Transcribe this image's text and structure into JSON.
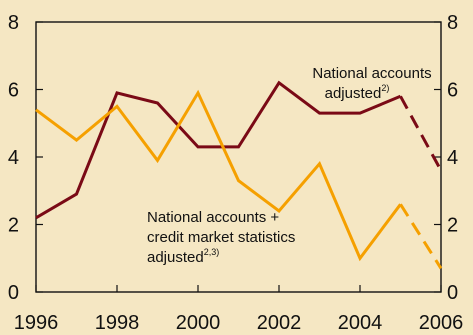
{
  "chart_data": {
    "type": "line",
    "title": "",
    "xlabel": "",
    "ylabel": "",
    "xlim": [
      1996,
      2006
    ],
    "ylim": [
      0,
      8
    ],
    "grid": false,
    "x_ticks": [
      "1996",
      "1998",
      "2000",
      "2002",
      "2004",
      "2006"
    ],
    "y_ticks_left": [
      "0",
      "2",
      "4",
      "6",
      "8"
    ],
    "y_ticks_right": [
      "0",
      "2",
      "4",
      "6",
      "8"
    ],
    "series": [
      {
        "label_main": "National accounts",
        "label_line2": "adjusted",
        "label_sup": "2)",
        "color": "#7a0a16",
        "points": [
          {
            "x": 1996,
            "y": 2.2
          },
          {
            "x": 1997,
            "y": 2.9
          },
          {
            "x": 1998,
            "y": 5.9
          },
          {
            "x": 1999,
            "y": 5.6
          },
          {
            "x": 2000,
            "y": 4.3
          },
          {
            "x": 2001,
            "y": 4.3
          },
          {
            "x": 2002,
            "y": 6.2
          },
          {
            "x": 2003,
            "y": 5.3
          },
          {
            "x": 2004,
            "y": 5.3
          },
          {
            "x": 2005,
            "y": 5.8
          },
          {
            "x": 2006,
            "y": 3.6
          }
        ],
        "dashed_from_x": 2005
      },
      {
        "label_main": "National accounts +",
        "label_line2": "credit market statistics",
        "label_line3": "adjusted",
        "label_sup": "2,3)",
        "color": "#f5a000",
        "points": [
          {
            "x": 1996,
            "y": 5.4
          },
          {
            "x": 1997,
            "y": 4.5
          },
          {
            "x": 1998,
            "y": 5.5
          },
          {
            "x": 1999,
            "y": 3.9
          },
          {
            "x": 2000,
            "y": 5.9
          },
          {
            "x": 2001,
            "y": 3.3
          },
          {
            "x": 2002,
            "y": 2.4
          },
          {
            "x": 2003,
            "y": 3.8
          },
          {
            "x": 2004,
            "y": 1.0
          },
          {
            "x": 2005,
            "y": 2.6
          },
          {
            "x": 2006,
            "y": 0.7
          }
        ],
        "dashed_from_x": 2005
      }
    ]
  }
}
